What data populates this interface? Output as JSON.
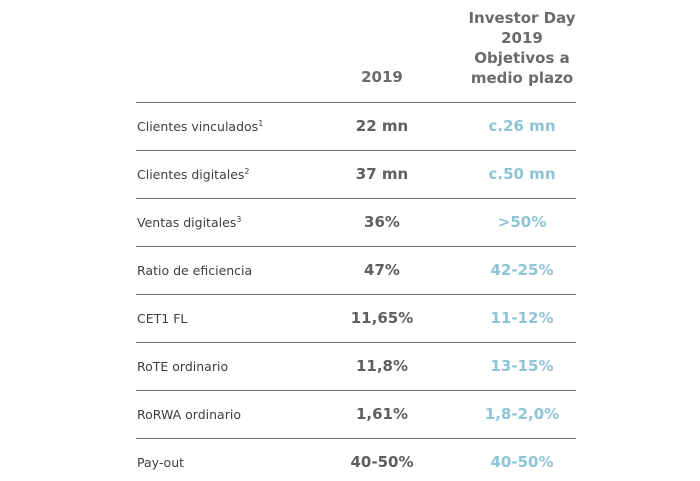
{
  "header": {
    "col_2019": "2019",
    "col_target_lines": [
      "Investor Day",
      "2019",
      "Objetivos a",
      "medio plazo"
    ]
  },
  "colors": {
    "text_dark": "#3e3e3e",
    "value_grey": "#5f5f5f",
    "target_blue": "#8fc4d6",
    "rule": "#6b6b6b"
  },
  "rows": [
    {
      "label": "Clientes vinculados",
      "sup": "1",
      "v2019": "22 mn",
      "target": "c.26 mn"
    },
    {
      "label": "Clientes digitales",
      "sup": "2",
      "v2019": "37 mn",
      "target": "c.50 mn"
    },
    {
      "label": "Ventas digitales",
      "sup": "3",
      "v2019": "36%",
      "target": ">50%"
    },
    {
      "label": "Ratio de eficiencia",
      "sup": "",
      "v2019": "47%",
      "target": "42-25%"
    },
    {
      "label": "CET1 FL",
      "sup": "",
      "v2019": "11,65%",
      "target": "11-12%"
    },
    {
      "label": "RoTE ordinario",
      "sup": "",
      "v2019": "11,8%",
      "target": "13-15%"
    },
    {
      "label": "RoRWA ordinario",
      "sup": "",
      "v2019": "1,61%",
      "target": "1,8-2,0%"
    },
    {
      "label": "Pay-out",
      "sup": "",
      "v2019": "40-50%",
      "target": "40-50%"
    }
  ]
}
